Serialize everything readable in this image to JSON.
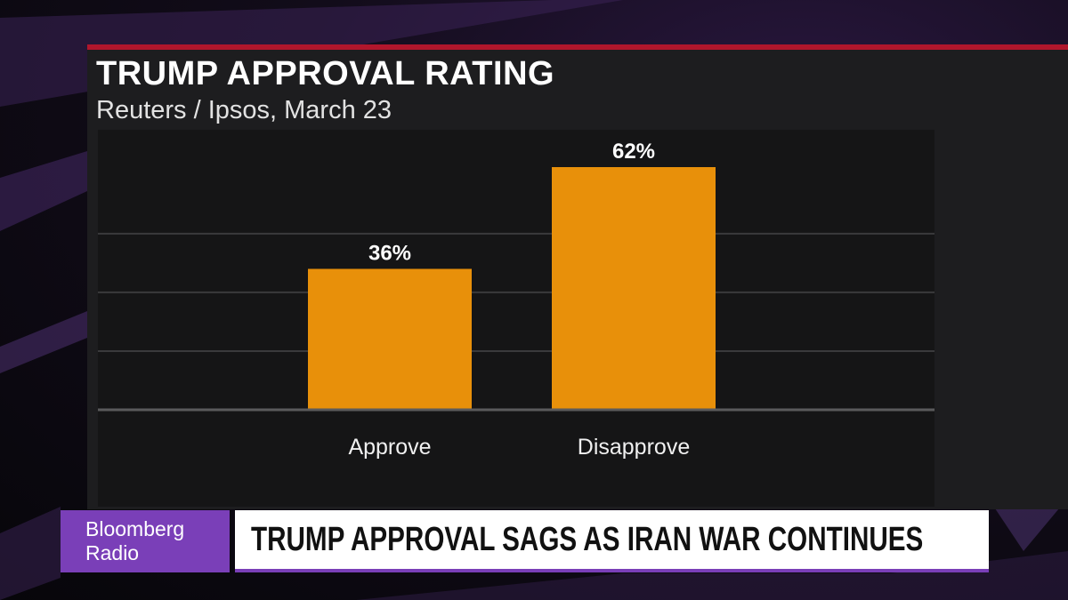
{
  "chart_data": {
    "type": "bar",
    "title": "TRUMP APPROVAL RATING",
    "subtitle": "Reuters / Ipsos, March 23",
    "categories": [
      "Approve",
      "Disapprove"
    ],
    "values": [
      36,
      62
    ],
    "value_labels": [
      "36%",
      "62%"
    ],
    "ylim": [
      0,
      62
    ],
    "xlabel": "",
    "ylabel": "",
    "grid": true,
    "gridline_values": [
      15,
      30,
      45
    ],
    "colors": {
      "bar": "#e8900a",
      "grid": "#3a3a3c",
      "baseline": "#5a5a5c",
      "label": "#ffffff"
    }
  },
  "lower_third": {
    "brand_line1": "Bloomberg",
    "brand_line2": "Radio",
    "headline": "TRUMP APPROVAL SAGS AS IRAN WAR CONTINUES",
    "colors": {
      "brand_bg": "#7a3fb8",
      "headline_bg": "#ffffff",
      "accent_red": "#b0162c"
    }
  }
}
